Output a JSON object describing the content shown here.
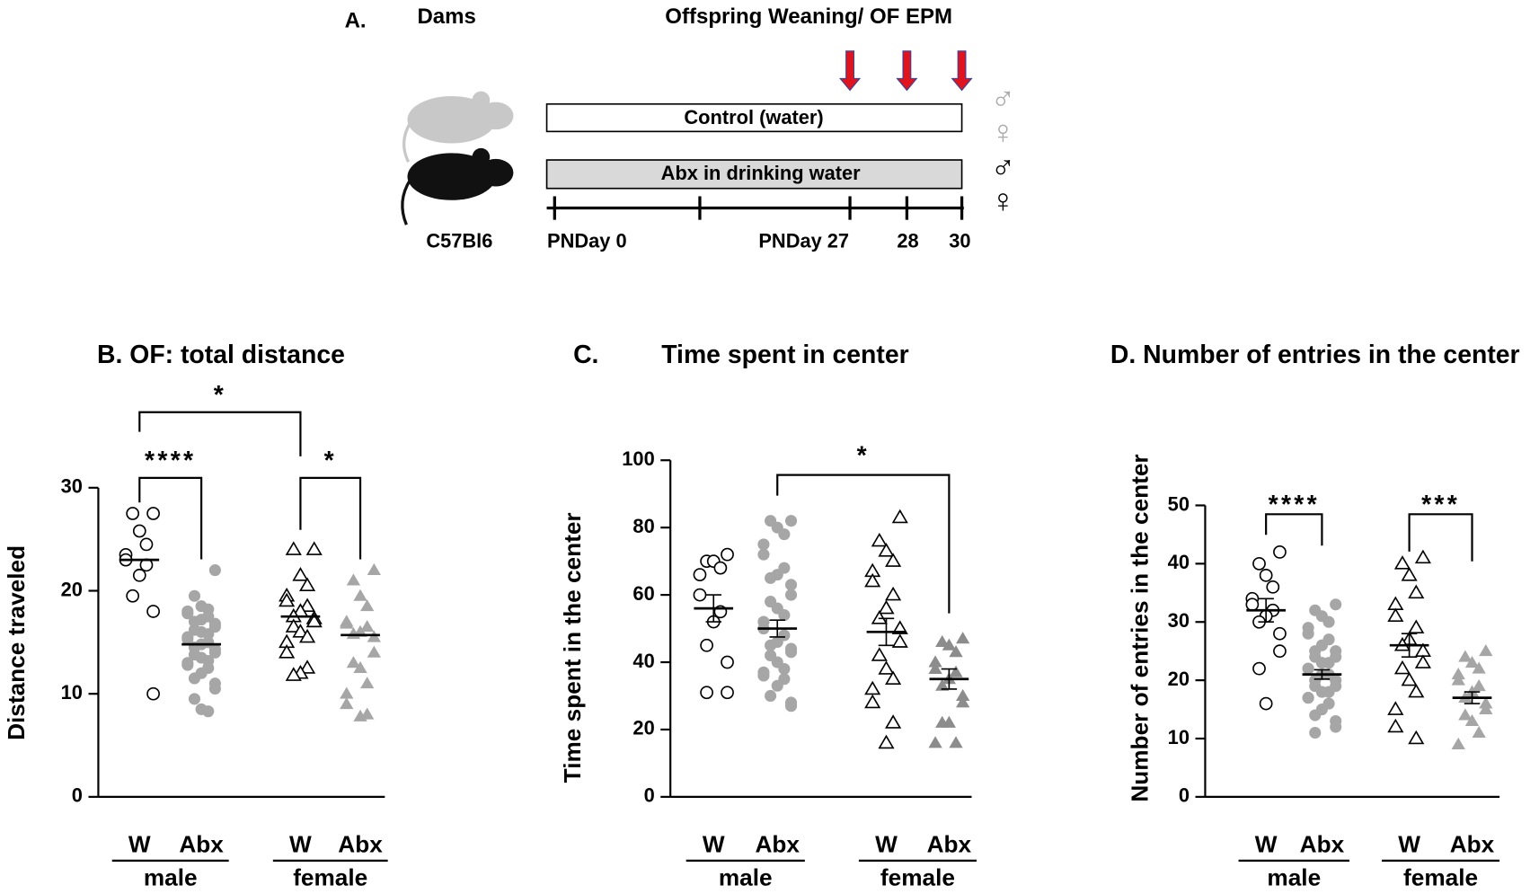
{
  "diagram": {
    "panel": "A.",
    "dams": "Dams",
    "event": "Offspring Weaning/ OF EPM",
    "control": "Control (water)",
    "abx": "Abx in drinking water",
    "strain": "C57Bl6",
    "day0": "PNDay 0",
    "day27": "PNDay 27",
    "day28": "28",
    "day30": "30",
    "symbols": [
      "♂",
      "♀",
      "♂",
      "♀"
    ]
  },
  "chart_data": [
    {
      "type": "strip",
      "title": "B. OF: total distance",
      "ylabel": "Distance traveled",
      "ylim": [
        0,
        30
      ],
      "yticks": [
        0,
        10,
        20,
        30
      ],
      "groups": [
        {
          "name": "male",
          "series": [
            {
              "name": "W",
              "marker": "circle",
              "color": "#ffffff",
              "mean": 23,
              "values": [
                27.5,
                27.5,
                25.8,
                24.5,
                23.5,
                23,
                22.5,
                21.5,
                19.5,
                18,
                10
              ]
            },
            {
              "name": "Abx",
              "marker": "circle",
              "color": "#a6a6a6",
              "mean": 14.8,
              "values": [
                22,
                19.5,
                18.5,
                18.2,
                18,
                17.8,
                17.5,
                17.2,
                17,
                16.8,
                16.5,
                16.2,
                16,
                15.8,
                15.5,
                15.3,
                15,
                14.8,
                14.5,
                14.3,
                14,
                13.8,
                13.5,
                13.2,
                13,
                12.8,
                12.5,
                12,
                11.5,
                11,
                10.5,
                9.5,
                8.5,
                8.3
              ]
            }
          ]
        },
        {
          "name": "female",
          "series": [
            {
              "name": "W",
              "marker": "triangle",
              "color": "#ffffff",
              "mean": 17.5,
              "values": [
                24,
                24,
                21.5,
                20.5,
                19.5,
                19,
                18.5,
                18,
                17.5,
                17.3,
                17,
                16.5,
                16,
                15.5,
                15,
                14,
                12.5,
                12,
                11.8
              ]
            },
            {
              "name": "Abx",
              "marker": "triangle",
              "color": "#a6a6a6",
              "mean": 15.7,
              "values": [
                22,
                21,
                19.5,
                18.5,
                17,
                16.8,
                16.5,
                16,
                15.8,
                15.5,
                14,
                13,
                12.5,
                11,
                10,
                9,
                8,
                7.8
              ]
            }
          ]
        }
      ],
      "annotations": [
        {
          "text": "****",
          "between": [
            0,
            1
          ]
        },
        {
          "text": "*",
          "between": [
            2,
            3
          ]
        },
        {
          "text": "*",
          "between": [
            0,
            2
          ]
        }
      ]
    },
    {
      "type": "strip",
      "panel": "C.",
      "title": "Time spent in center",
      "ylabel": "Time spent in the center",
      "ylim": [
        0,
        100
      ],
      "yticks": [
        0,
        20,
        40,
        60,
        80,
        100
      ],
      "groups": [
        {
          "name": "male",
          "series": [
            {
              "name": "W",
              "marker": "circle",
              "color": "#ffffff",
              "mean": 56,
              "sem": 4,
              "values": [
                72,
                70,
                70,
                68,
                66,
                60,
                55,
                52,
                45,
                40,
                31,
                31
              ]
            },
            {
              "name": "Abx",
              "marker": "circle",
              "color": "#a6a6a6",
              "mean": 50,
              "sem": 2.5,
              "values": [
                82,
                82,
                80,
                78,
                75,
                72,
                68,
                66,
                65,
                63,
                60,
                58,
                56,
                54,
                52,
                50,
                48,
                46,
                45,
                44,
                43,
                42,
                40,
                38,
                37,
                36,
                35,
                33,
                30,
                28,
                27
              ]
            }
          ]
        },
        {
          "name": "female",
          "series": [
            {
              "name": "W",
              "marker": "triangle",
              "color": "#ffffff",
              "mean": 49,
              "sem": 4,
              "values": [
                83,
                76,
                73,
                70,
                67,
                64,
                60,
                56,
                53,
                50,
                46,
                42,
                38,
                35,
                32,
                28,
                22,
                16
              ]
            },
            {
              "name": "Abx",
              "marker": "triangle",
              "color": "#8c8c8c",
              "mean": 35,
              "sem": 3,
              "values": [
                47,
                46,
                45,
                43,
                40,
                38,
                37,
                35,
                33,
                30,
                28,
                22,
                22,
                16,
                16
              ]
            }
          ]
        }
      ],
      "annotations": [
        {
          "text": "*",
          "between": [
            1,
            3
          ]
        }
      ]
    },
    {
      "type": "strip",
      "title": "D. Number of entries in the center",
      "ylabel": "Number of entries  in the center",
      "ylim": [
        0,
        50
      ],
      "yticks": [
        0,
        10,
        20,
        30,
        40,
        50
      ],
      "groups": [
        {
          "name": "male",
          "series": [
            {
              "name": "W",
              "marker": "circle",
              "color": "#ffffff",
              "mean": 32,
              "sem": 2,
              "values": [
                42,
                40,
                38,
                36,
                34,
                33,
                32,
                31,
                30,
                28,
                25,
                22,
                16
              ]
            },
            {
              "name": "Abx",
              "marker": "circle",
              "color": "#a6a6a6",
              "mean": 21,
              "sem": 0.8,
              "values": [
                33,
                32,
                31,
                30,
                29,
                28,
                27,
                26,
                25,
                25,
                24,
                24,
                23,
                23,
                22,
                22,
                21,
                21,
                20,
                20,
                19,
                19,
                18,
                18,
                17,
                17,
                16,
                15,
                14,
                13,
                12,
                11
              ]
            }
          ]
        },
        {
          "name": "female",
          "series": [
            {
              "name": "W",
              "marker": "triangle",
              "color": "#ffffff",
              "mean": 26,
              "sem": 2,
              "values": [
                41,
                40,
                38,
                35,
                33,
                31,
                29,
                27,
                26,
                25,
                23,
                22,
                20,
                18,
                15,
                12,
                10
              ]
            },
            {
              "name": "Abx",
              "marker": "triangle",
              "color": "#a6a6a6",
              "mean": 17,
              "sem": 1,
              "values": [
                25,
                24,
                23,
                22,
                21,
                20,
                19,
                18,
                17,
                16,
                15,
                14,
                13,
                11,
                9
              ]
            }
          ]
        }
      ],
      "annotations": [
        {
          "text": "****",
          "between": [
            0,
            1
          ]
        },
        {
          "text": "***",
          "between": [
            2,
            3
          ]
        }
      ]
    }
  ]
}
